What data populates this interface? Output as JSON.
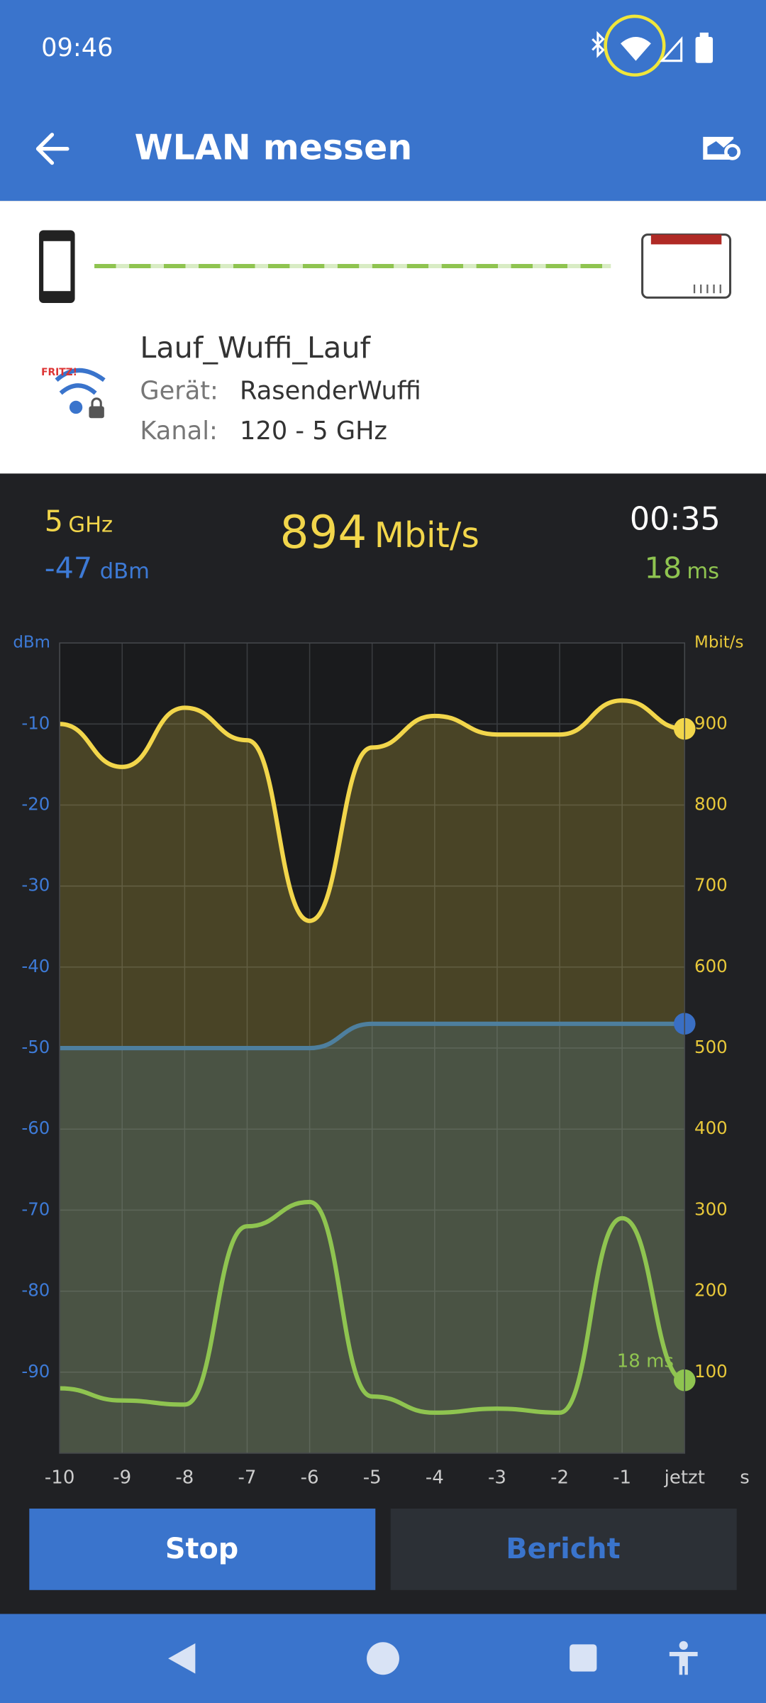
{
  "status_bar": {
    "time": "09:46"
  },
  "app_bar": {
    "title": "WLAN messen"
  },
  "connection": {
    "network": "Lauf_Wuffi_Lauf",
    "device_label": "Gerät:",
    "device": "RasenderWuffi",
    "channel_label": "Kanal:",
    "channel": "120 - 5 GHz",
    "logo_text": "FRITZ!"
  },
  "stats": {
    "band": {
      "value": "5",
      "unit": "GHz"
    },
    "signal": {
      "value": "-47",
      "unit": "dBm"
    },
    "rate": {
      "value": "894",
      "unit": "Mbit/s"
    },
    "duration": "00:35",
    "latency": {
      "value": "18",
      "unit": "ms"
    }
  },
  "chart_data": {
    "type": "line",
    "y_label": "dBm",
    "y2_label": "Mbit/s",
    "x_label": "s",
    "x": [
      -10,
      -9,
      -8,
      -7,
      -6,
      -5,
      -4,
      -3,
      -2,
      -1,
      0
    ],
    "xlim": [
      -10,
      0
    ],
    "xticks": [
      -10,
      -9,
      -8,
      -7,
      -6,
      -5,
      -4,
      -3,
      -2,
      -1,
      {
        "value": 0,
        "label": "jetzt"
      }
    ],
    "ylim": [
      -100,
      0
    ],
    "yticks": [
      -90,
      -80,
      -70,
      -60,
      -50,
      -40,
      -30,
      -20,
      -10
    ],
    "y2lim": [
      0,
      1000
    ],
    "y2ticks": [
      100,
      200,
      300,
      400,
      500,
      600,
      700,
      800,
      900
    ],
    "y3lim": [
      0,
      200
    ],
    "grid": true,
    "series": [
      {
        "color": "#f2d64b",
        "axis": "y2",
        "area": true,
        "values": [
          900,
          847,
          920,
          880,
          657,
          871,
          910,
          887,
          887,
          929,
          894
        ]
      },
      {
        "color": "#4e7f9e",
        "axis": "y",
        "area": true,
        "values": [
          -50,
          -50,
          -50,
          -50,
          -50,
          -47,
          -47,
          -47,
          -47,
          -47,
          -47
        ]
      },
      {
        "color": "#8fc450",
        "axis": "y3",
        "area": false,
        "values": [
          16,
          13,
          12,
          56,
          62,
          14,
          10,
          11,
          10,
          58,
          18
        ],
        "value_labels": [
          null,
          null,
          null,
          null,
          null,
          null,
          null,
          null,
          null,
          null,
          "18 ms"
        ]
      }
    ]
  },
  "buttons": {
    "stop": "Stop",
    "report": "Bericht"
  }
}
